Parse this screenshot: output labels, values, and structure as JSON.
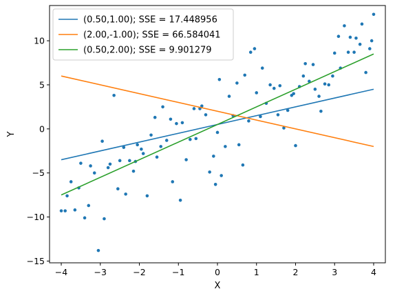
{
  "chart_data": {
    "type": "scatter",
    "title": "",
    "xlabel": "X",
    "ylabel": "Y",
    "xlim": [
      -4.3,
      4.3
    ],
    "ylim": [
      -15.2,
      14.0
    ],
    "xticks": [
      -4,
      -3,
      -2,
      -1,
      0,
      1,
      2,
      3,
      4
    ],
    "yticks": [
      -15,
      -10,
      -5,
      0,
      5,
      10
    ],
    "xtick_labels": [
      "−4",
      "−3",
      "−2",
      "−1",
      "0",
      "1",
      "2",
      "3",
      "4"
    ],
    "ytick_labels": [
      "−15",
      "−10",
      "−5",
      "0",
      "5",
      "10"
    ],
    "grid": false,
    "legend_position": "upper-left",
    "colors": {
      "points": "#1f77b4",
      "line1": "#1f77b4",
      "line2": "#ff7f0e",
      "line3": "#2ca02c"
    },
    "points": [
      [
        -4.0,
        -9.3
      ],
      [
        -3.9,
        -9.3
      ],
      [
        -3.85,
        -7.6
      ],
      [
        -3.75,
        -6.0
      ],
      [
        -3.65,
        -9.2
      ],
      [
        -3.55,
        -6.7
      ],
      [
        -3.5,
        -3.9
      ],
      [
        -3.4,
        -10.1
      ],
      [
        -3.3,
        -8.7
      ],
      [
        -3.25,
        -4.2
      ],
      [
        -3.15,
        -5.0
      ],
      [
        -3.05,
        -13.8
      ],
      [
        -2.95,
        -1.4
      ],
      [
        -2.9,
        -10.2
      ],
      [
        -2.8,
        -4.4
      ],
      [
        -2.75,
        -4.0
      ],
      [
        -2.65,
        3.8
      ],
      [
        -2.55,
        -6.8
      ],
      [
        -2.5,
        -3.6
      ],
      [
        -2.4,
        -2.1
      ],
      [
        -2.35,
        -7.4
      ],
      [
        -2.25,
        -3.6
      ],
      [
        -2.15,
        -4.8
      ],
      [
        -2.1,
        -3.7
      ],
      [
        -2.05,
        -1.8
      ],
      [
        -1.95,
        -2.3
      ],
      [
        -1.9,
        -2.8
      ],
      [
        -1.8,
        -7.6
      ],
      [
        -1.7,
        -0.7
      ],
      [
        -1.6,
        1.3
      ],
      [
        -1.55,
        -3.2
      ],
      [
        -1.45,
        -2.0
      ],
      [
        -1.4,
        2.5
      ],
      [
        -1.3,
        -1.3
      ],
      [
        -1.2,
        1.1
      ],
      [
        -1.15,
        -6.0
      ],
      [
        -1.05,
        0.6
      ],
      [
        -0.95,
        -8.1
      ],
      [
        -0.9,
        0.7
      ],
      [
        -0.8,
        -3.5
      ],
      [
        -0.7,
        -1.2
      ],
      [
        -0.6,
        2.3
      ],
      [
        -0.55,
        -1.1
      ],
      [
        -0.45,
        2.3
      ],
      [
        -0.4,
        2.6
      ],
      [
        -0.3,
        1.6
      ],
      [
        -0.2,
        -4.9
      ],
      [
        -0.1,
        -3.1
      ],
      [
        -0.05,
        -6.3
      ],
      [
        0.0,
        -0.4
      ],
      [
        0.05,
        5.6
      ],
      [
        0.1,
        -5.3
      ],
      [
        0.2,
        -2.0
      ],
      [
        0.3,
        3.7
      ],
      [
        0.4,
        1.5
      ],
      [
        0.5,
        5.2
      ],
      [
        0.55,
        -1.8
      ],
      [
        0.65,
        -4.1
      ],
      [
        0.7,
        6.1
      ],
      [
        0.8,
        0.9
      ],
      [
        0.85,
        8.7
      ],
      [
        0.95,
        9.1
      ],
      [
        1.0,
        4.1
      ],
      [
        1.1,
        1.4
      ],
      [
        1.15,
        6.9
      ],
      [
        1.25,
        2.9
      ],
      [
        1.35,
        5.0
      ],
      [
        1.45,
        4.6
      ],
      [
        1.55,
        1.6
      ],
      [
        1.6,
        4.9
      ],
      [
        1.7,
        0.1
      ],
      [
        1.8,
        2.1
      ],
      [
        1.9,
        3.8
      ],
      [
        1.95,
        4.0
      ],
      [
        2.0,
        -1.9
      ],
      [
        2.1,
        4.8
      ],
      [
        2.2,
        6.0
      ],
      [
        2.25,
        7.4
      ],
      [
        2.35,
        5.4
      ],
      [
        2.45,
        7.3
      ],
      [
        2.5,
        4.5
      ],
      [
        2.6,
        3.7
      ],
      [
        2.65,
        2.0
      ],
      [
        2.75,
        5.1
      ],
      [
        2.85,
        5.0
      ],
      [
        2.95,
        6.0
      ],
      [
        3.0,
        8.6
      ],
      [
        3.1,
        10.5
      ],
      [
        3.15,
        6.9
      ],
      [
        3.25,
        11.7
      ],
      [
        3.35,
        8.7
      ],
      [
        3.4,
        10.4
      ],
      [
        3.5,
        8.7
      ],
      [
        3.55,
        10.3
      ],
      [
        3.65,
        9.6
      ],
      [
        3.7,
        11.9
      ],
      [
        3.8,
        6.4
      ],
      [
        3.9,
        9.1
      ],
      [
        3.95,
        10.0
      ],
      [
        4.0,
        13.0
      ]
    ],
    "series": [
      {
        "name": "(0.50,1.00); SSE = 17.448956",
        "slope": 1.0,
        "intercept": 0.5,
        "color": "#1f77b4"
      },
      {
        "name": "(2.00,-1.00); SSE = 66.584041",
        "slope": -1.0,
        "intercept": 2.0,
        "color": "#ff7f0e"
      },
      {
        "name": "(0.50,2.00); SSE = 9.901279",
        "slope": 2.0,
        "intercept": 0.5,
        "color": "#2ca02c"
      }
    ],
    "line_x_range": [
      -4,
      4
    ]
  }
}
